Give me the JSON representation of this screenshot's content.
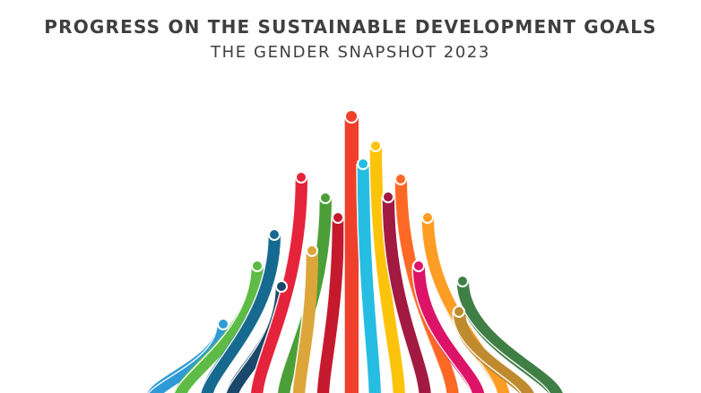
{
  "header": {
    "title": "PROGRESS ON THE SUSTAINABLE DEVELOPMENT GOALS",
    "subtitle": "THE GENDER SNAPSHOT 2023"
  },
  "illustration": {
    "description_colors": [
      "#2E9BD6",
      "#5DBB46",
      "#166A8F",
      "#19486A",
      "#E5243B",
      "#4C9F38",
      "#DDA63A",
      "#C5192D",
      "#EF402B",
      "#26BDE2",
      "#FCC30B",
      "#A21942",
      "#FD6925",
      "#DD1367",
      "#FD9D24",
      "#BF8B2E",
      "#3F7E44"
    ]
  }
}
